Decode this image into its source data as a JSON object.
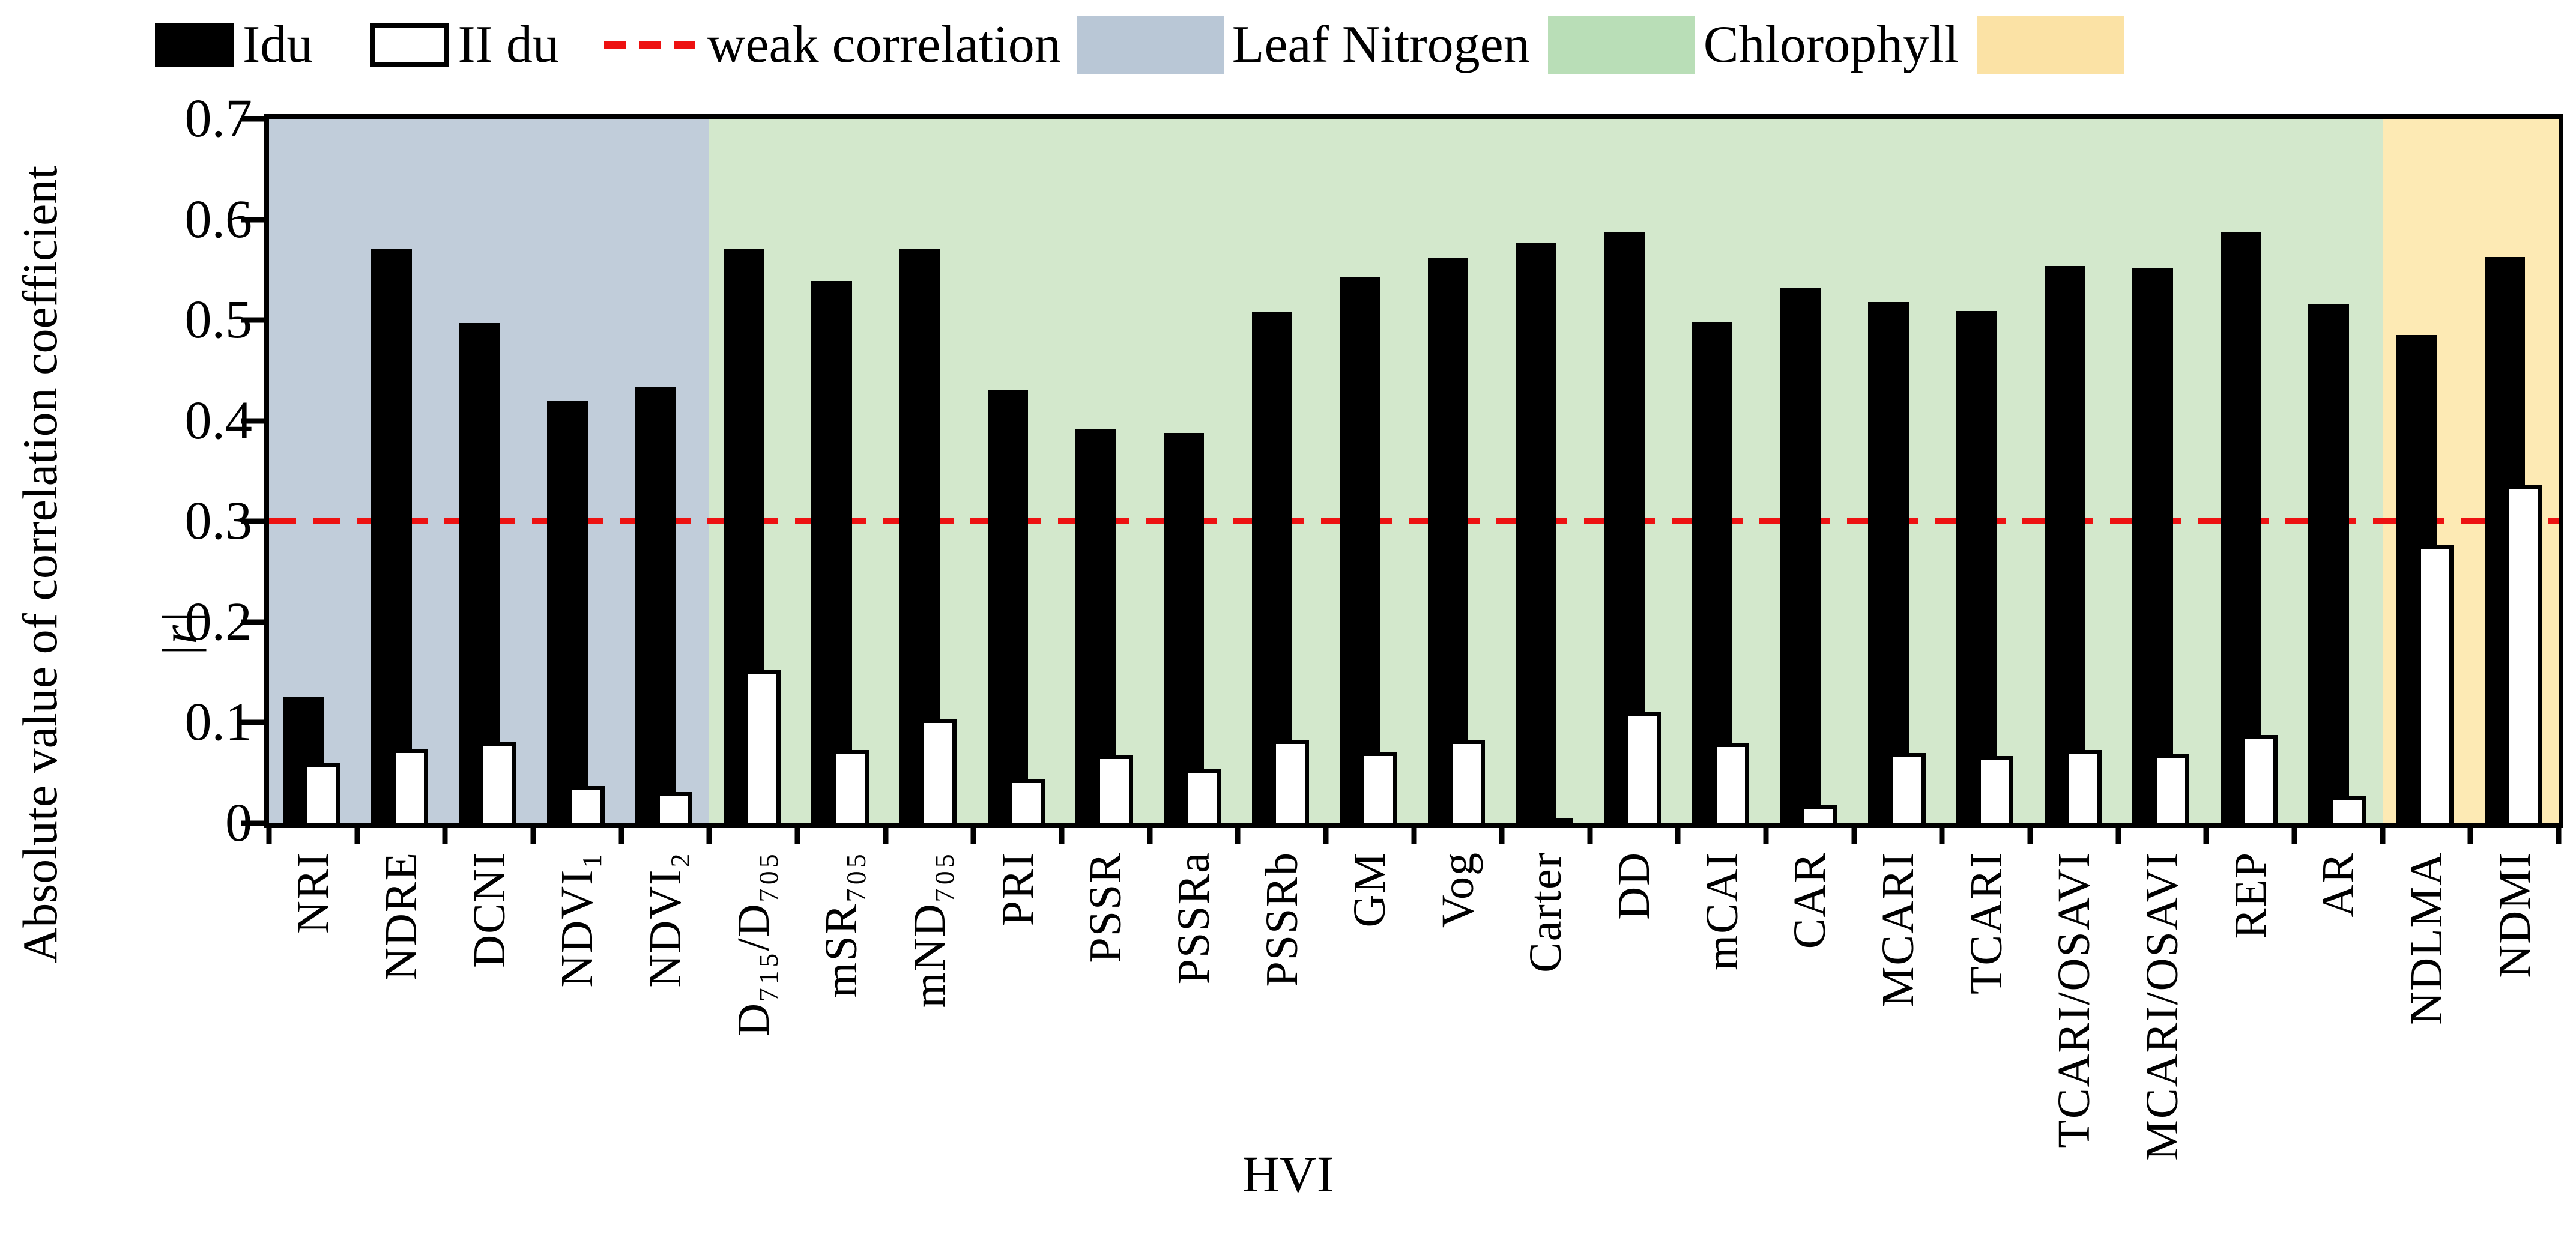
{
  "legend": {
    "items": [
      {
        "label": "Idu",
        "swatch": "black-filled-square"
      },
      {
        "label": "II du",
        "swatch": "white-outlined-square"
      },
      {
        "label": "weak correlation",
        "swatch": "red-dashed-line"
      },
      {
        "label": "Leaf Nitrogen",
        "swatch": "blue-square"
      },
      {
        "label": "Chlorophyll",
        "swatch": "green-square"
      },
      {
        "label": "",
        "swatch": "yellow-square"
      }
    ]
  },
  "colors": {
    "series_idu": "#000000",
    "series_iidu": "#ffffff",
    "reference_line": "#ed1111",
    "legend_blue": "#b9c7d6",
    "legend_green": "#b9deb7",
    "legend_yellow": "#fbe2a5",
    "region_leaf_nitrogen": "#c1cdda",
    "region_chlorophyll": "#d3e8cc",
    "region_yellow": "#fdeab4"
  },
  "chart_data": {
    "type": "bar",
    "title": "",
    "xlabel": "HVI",
    "ylabel": "Absolute value of correlation coefficient",
    "ylabel_r": "|r|",
    "ylim": [
      0,
      0.7
    ],
    "ytick_labels": [
      "0",
      "0.1",
      "0.2",
      "0.3",
      "0.4",
      "0.5",
      "0.6",
      "0.7"
    ],
    "grid": false,
    "legend_position": "top",
    "categories": [
      "NRI",
      "NDRE",
      "DCNI",
      "NDVI₁",
      "NDVI₂",
      "D₇₁₅/D₇₀₅",
      "mSR₇₀₅",
      "mND₇₀₅",
      "PRI",
      "PSSR",
      "PSSRa",
      "PSSRb",
      "GM",
      "Vog",
      "Carter",
      "DD",
      "mCAI",
      "CAR",
      "MCARI",
      "TCARI",
      "TCARI/OSAVI",
      "MCARI/OSAVI",
      "REP",
      "AR",
      "NDLMA",
      "NDMI"
    ],
    "series": [
      {
        "name": "Idu",
        "color": "#000000",
        "values": [
          0.126,
          0.571,
          0.497,
          0.42,
          0.433,
          0.571,
          0.539,
          0.571,
          0.43,
          0.392,
          0.388,
          0.508,
          0.543,
          0.562,
          0.577,
          0.588,
          0.498,
          0.532,
          0.518,
          0.509,
          0.554,
          0.552,
          0.588,
          0.516,
          0.485,
          0.563
        ]
      },
      {
        "name": "II du",
        "color": "#ffffff",
        "values": [
          0.06,
          0.074,
          0.081,
          0.037,
          0.031,
          0.153,
          0.073,
          0.104,
          0.044,
          0.068,
          0.054,
          0.083,
          0.071,
          0.083,
          0.005,
          0.111,
          0.08,
          0.018,
          0.07,
          0.067,
          0.073,
          0.069,
          0.088,
          0.027,
          0.277,
          0.336
        ]
      }
    ],
    "reference_line": {
      "label": "weak correlation",
      "value": 0.3,
      "style": "dashed",
      "color": "#ed1111"
    },
    "regions": [
      {
        "label": "Leaf Nitrogen",
        "color": "#c1cdda",
        "from_index": 0,
        "to_index": 4
      },
      {
        "label": "Chlorophyll",
        "color": "#d3e8cc",
        "from_index": 5,
        "to_index": 23
      },
      {
        "label": "",
        "color": "#fdeab4",
        "from_index": 24,
        "to_index": 25
      }
    ]
  }
}
